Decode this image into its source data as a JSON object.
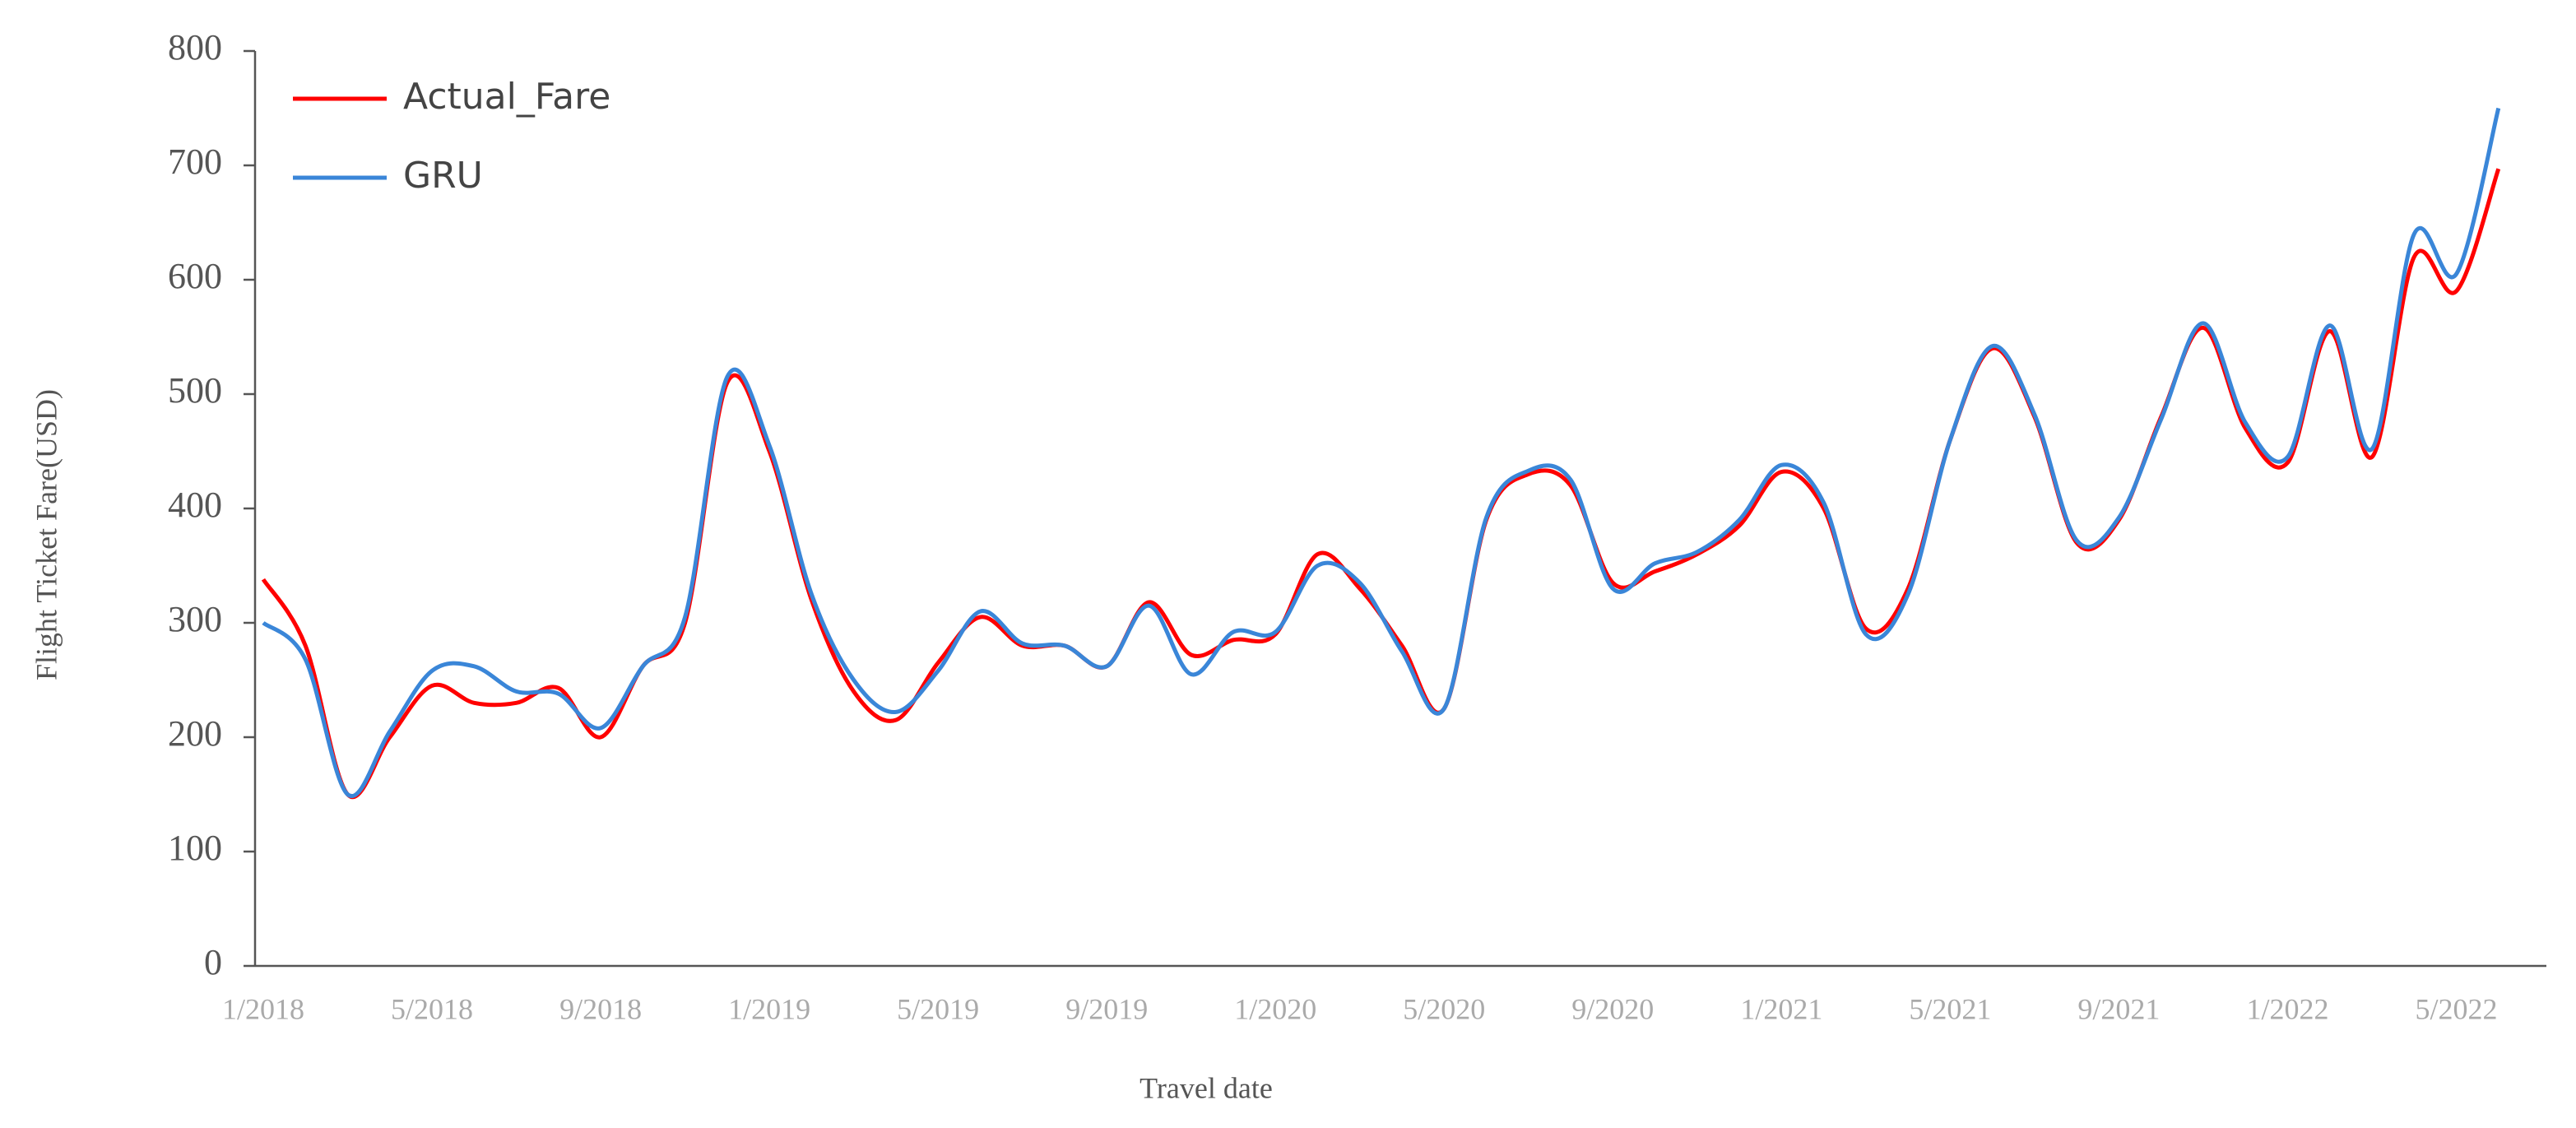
{
  "chart_data": {
    "type": "line",
    "x_label": "Travel date",
    "y_label": "Flight Ticket Fare(USD)",
    "categories": [
      "1/2018",
      null,
      null,
      null,
      "5/2018",
      null,
      null,
      null,
      "9/2018",
      null,
      null,
      null,
      "1/2019",
      null,
      null,
      null,
      "5/2019",
      null,
      null,
      null,
      "9/2019",
      null,
      null,
      null,
      "1/2020",
      null,
      null,
      null,
      "5/2020",
      null,
      null,
      null,
      "9/2020",
      null,
      null,
      null,
      "1/2021",
      null,
      null,
      null,
      "5/2021",
      null,
      null,
      null,
      "9/2021",
      null,
      null,
      null,
      "1/2022",
      null,
      null,
      null,
      "5/2022",
      null
    ],
    "series": [
      {
        "name": "Actual_Fare",
        "color": "#ff0000",
        "values": [
          338,
          280,
          150,
          200,
          245,
          230,
          230,
          243,
          200,
          262,
          300,
          510,
          450,
          320,
          240,
          215,
          265,
          305,
          280,
          280,
          262,
          318,
          272,
          285,
          290,
          360,
          330,
          280,
          225,
          390,
          430,
          420,
          335,
          345,
          360,
          385,
          432,
          400,
          295,
          330,
          460,
          540,
          480,
          370,
          390,
          480,
          558,
          470,
          440,
          555,
          445,
          620,
          590,
          697
        ]
      },
      {
        "name": "GRU",
        "color": "#3a86d8",
        "values": [
          300,
          268,
          150,
          205,
          258,
          262,
          240,
          238,
          208,
          262,
          305,
          515,
          455,
          325,
          250,
          222,
          258,
          310,
          282,
          280,
          262,
          315,
          255,
          292,
          292,
          350,
          335,
          275,
          225,
          392,
          433,
          425,
          330,
          352,
          362,
          390,
          438,
          405,
          290,
          325,
          460,
          542,
          482,
          372,
          392,
          478,
          562,
          475,
          445,
          560,
          452,
          640,
          605,
          750
        ]
      }
    ],
    "ylim": [
      0,
      800
    ],
    "yticks": [
      0,
      100,
      200,
      300,
      400,
      500,
      600,
      700,
      800
    ],
    "legend": "upper left",
    "grid": false
  }
}
